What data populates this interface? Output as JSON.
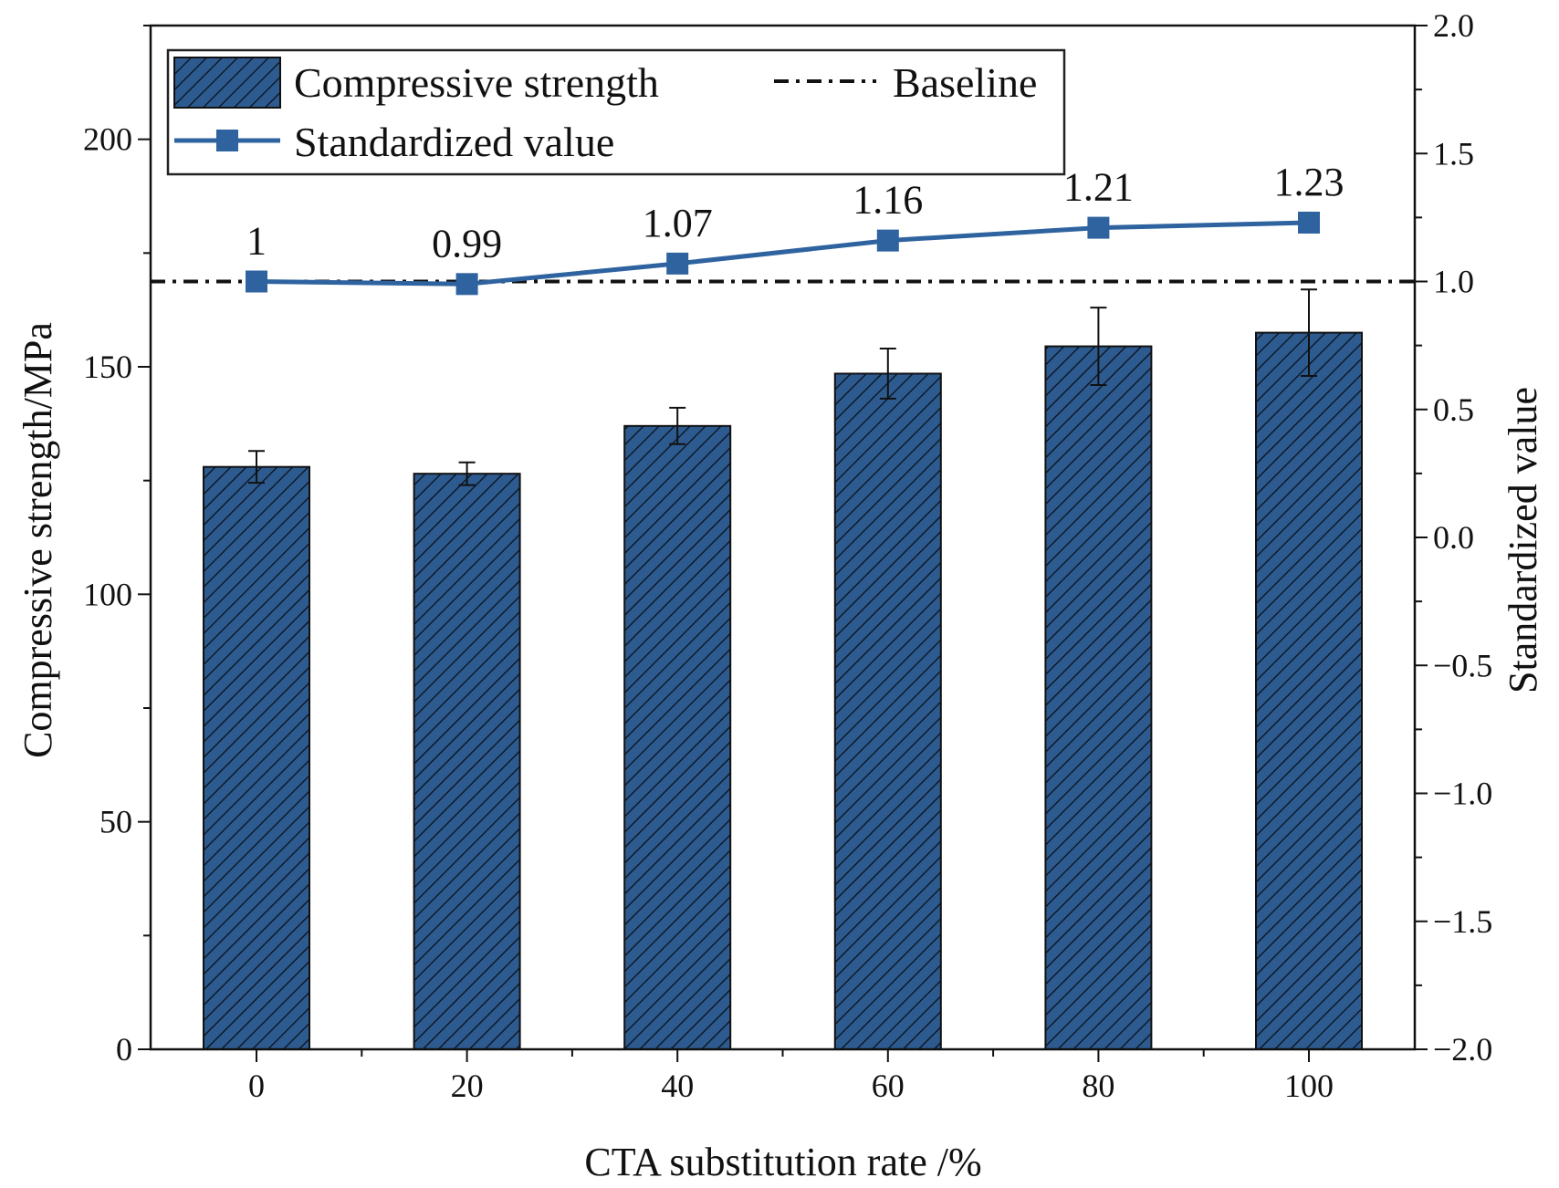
{
  "chart_data": {
    "type": "bar+line",
    "xlabel": "CTA substitution rate /%",
    "ylabel_left": "Compressive strength/MPa",
    "ylabel_right": "Standardized value",
    "categories": [
      "0",
      "20",
      "40",
      "60",
      "80",
      "100"
    ],
    "ylim_left": [
      0,
      225
    ],
    "yticks_left": [
      "0",
      "50",
      "100",
      "150",
      "200"
    ],
    "ylim_right": [
      -2.0,
      2.0
    ],
    "yticks_right": [
      "−2.0",
      "−1.5",
      "−1.0",
      "−0.5",
      "0.0",
      "0.5",
      "1.0",
      "1.5",
      "2.0"
    ],
    "bars": {
      "name": "Compressive strength",
      "values": [
        128,
        126.5,
        137,
        148.5,
        154.5,
        157.5
      ],
      "errors": [
        3.5,
        2.5,
        4,
        5.5,
        8.5,
        9.5
      ],
      "color": "#2e5b8f"
    },
    "line": {
      "name": "Standardized value",
      "values": [
        1.0,
        0.99,
        1.07,
        1.16,
        1.21,
        1.23
      ],
      "labels": [
        "1",
        "0.99",
        "1.07",
        "1.16",
        "1.21",
        "1.23"
      ],
      "color": "#2e63a0"
    },
    "baseline": {
      "name": "Baseline",
      "value": 1.0
    },
    "legend": {
      "position": "top-left",
      "entries": [
        "Compressive strength",
        "Baseline",
        "Standardized value"
      ]
    }
  }
}
